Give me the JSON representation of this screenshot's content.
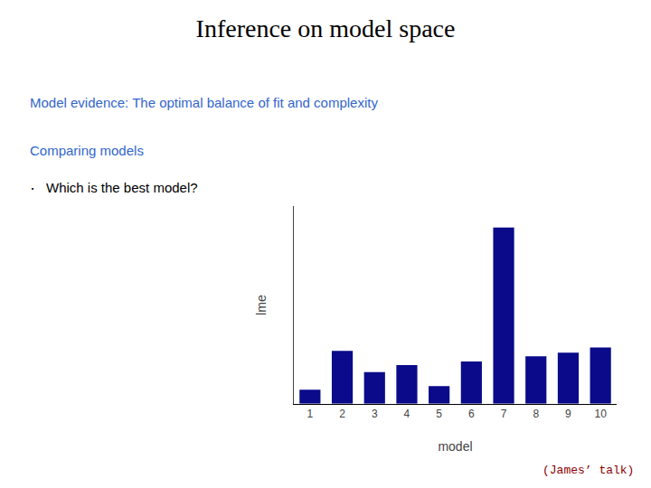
{
  "chart_data": {
    "type": "bar",
    "title": "Inference on model space",
    "categories": [
      1,
      2,
      3,
      4,
      5,
      6,
      7,
      8,
      9,
      10
    ],
    "values": [
      0.08,
      0.3,
      0.18,
      0.22,
      0.1,
      0.24,
      1.0,
      0.27,
      0.29,
      0.32
    ],
    "color": "#0a0a8a",
    "xlabel": "model",
    "ylabel": "lme",
    "ylim": [
      0,
      1.12
    ],
    "yticks": [],
    "tick_labels": "x",
    "grid": false,
    "annotations": [
      {
        "text": "Model evidence: The optimal balance of fit and complexity",
        "color": "#3366cc"
      },
      {
        "text": "Comparing models",
        "color": "#3366cc"
      },
      {
        "text": "·",
        "color": "#000000"
      },
      {
        "text": "Which is the best model?",
        "color": "#000000"
      },
      {
        "text": "(James’ talk)",
        "color": "#8B0000"
      }
    ]
  }
}
